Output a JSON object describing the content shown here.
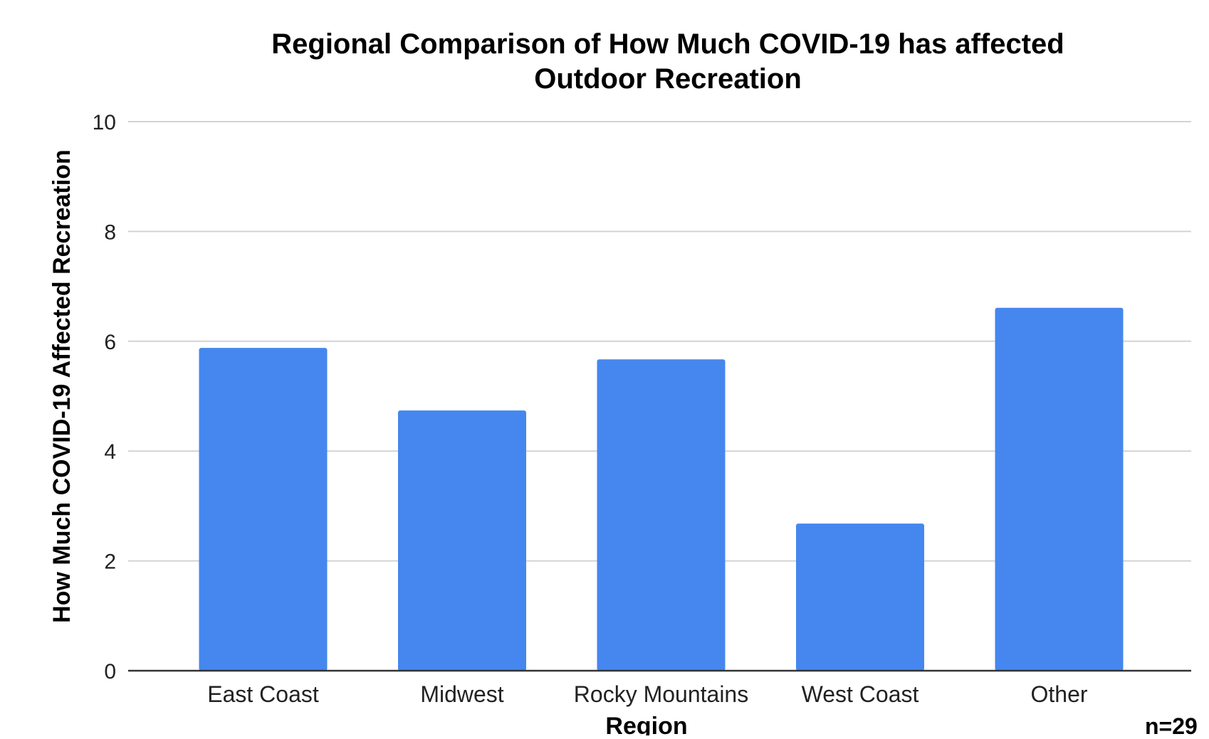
{
  "colors": {
    "bar": "#4587ee",
    "grid": "#d3d3d3",
    "axis": "#333333",
    "text": "#000000"
  },
  "chart_data": {
    "type": "bar",
    "title": "Regional Comparison of How Much COVID-19 has affected Outdoor Recreation",
    "title_lines": [
      "Regional Comparison of How Much COVID-19 has affected",
      "Outdoor Recreation"
    ],
    "xlabel": "Region",
    "ylabel": "How Much COVID-19 Affected Recreation",
    "categories": [
      "East Coast",
      "Midwest",
      "Rocky Mountains",
      "West Coast",
      "Other"
    ],
    "values": [
      5.88,
      4.74,
      5.67,
      2.68,
      6.61
    ],
    "ylim": [
      0,
      10
    ],
    "yticks": [
      0,
      2,
      4,
      6,
      8,
      10
    ],
    "grid": true,
    "legend": "none",
    "annotation": "n=29"
  }
}
